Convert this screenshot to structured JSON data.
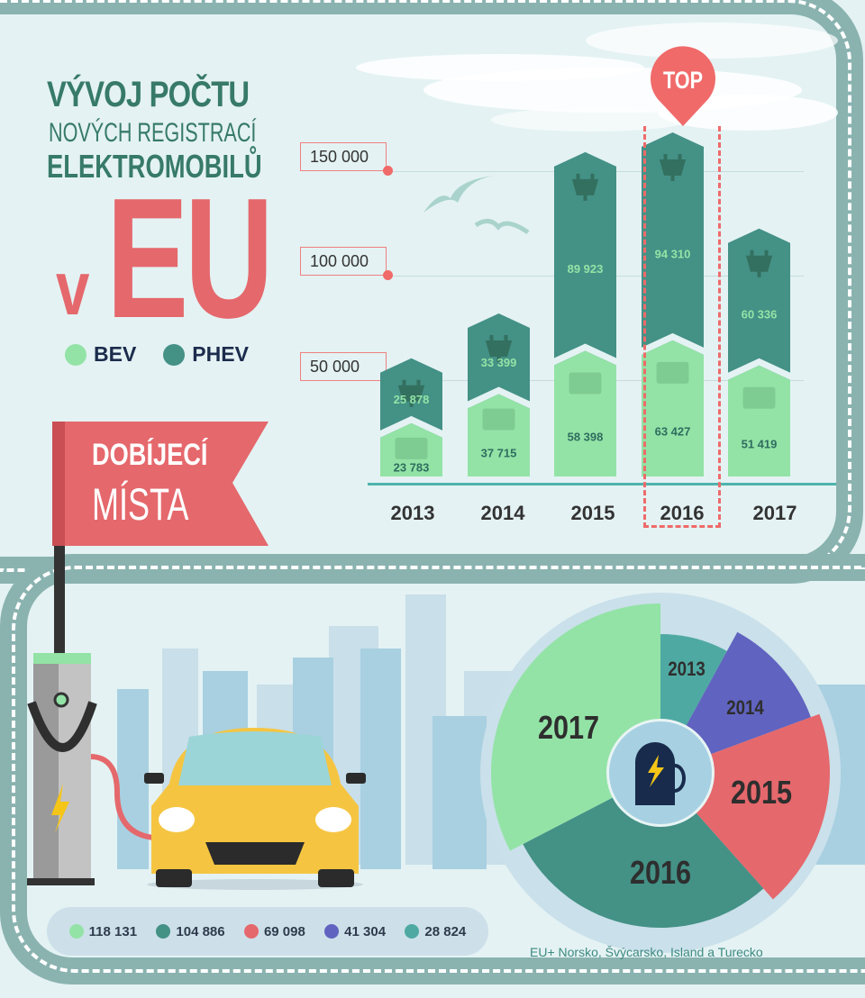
{
  "title": {
    "line1": "VÝVOJ POČTU",
    "line2": "NOVÝCH REGISTRACÍ",
    "line3": "ELEKTROMOBILŮ",
    "v": "v",
    "eu": "EU"
  },
  "legend": [
    {
      "label": "BEV",
      "color": "#93e3a6"
    },
    {
      "label": "PHEV",
      "color": "#449186"
    }
  ],
  "flag": {
    "line1": "DOBÍJECÍ",
    "line2": "MÍSTA"
  },
  "badge": "TOP",
  "footnote": "EU+ Norsko, Švýcarsko, Island a Turecko",
  "chart_data": [
    {
      "type": "bar",
      "stacked": true,
      "categories": [
        "2013",
        "2014",
        "2015",
        "2016",
        "2017"
      ],
      "series": [
        {
          "name": "BEV",
          "color": "#93e3a6",
          "values": [
            23783,
            37715,
            58398,
            63427,
            51419
          ],
          "labels": [
            "23 783",
            "37 715",
            "58 398",
            "63 427",
            "51 419"
          ]
        },
        {
          "name": "PHEV",
          "color": "#449186",
          "values": [
            25878,
            33399,
            89923,
            94310,
            60336
          ],
          "labels": [
            "25 878",
            "33 399",
            "89 923",
            "94 310",
            "60 336"
          ]
        }
      ],
      "yticks": [
        "50 000",
        "100 000",
        "150 000"
      ],
      "ytick_values": [
        50000,
        100000,
        150000
      ],
      "ylim": [
        0,
        160000
      ],
      "grid": true,
      "highlight": "2016"
    },
    {
      "type": "pie",
      "variant": "polar-area",
      "categories": [
        "2013",
        "2014",
        "2015",
        "2016",
        "2017"
      ],
      "values": [
        28824,
        41304,
        69098,
        104886,
        118131
      ],
      "value_labels": [
        "28 824",
        "41 304",
        "69 098",
        "104 886",
        "118 131"
      ],
      "colors": [
        "#4fa9a3",
        "#6063bf",
        "#e5686c",
        "#449186",
        "#93e3a6"
      ]
    }
  ]
}
